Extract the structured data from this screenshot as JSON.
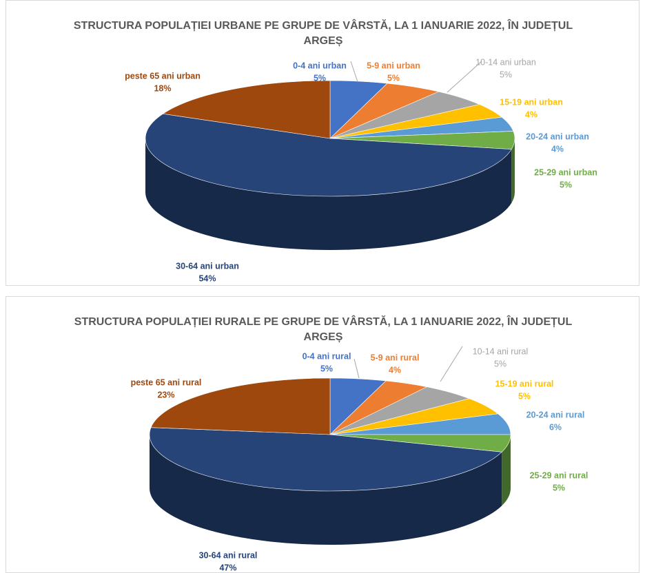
{
  "chart_data": [
    {
      "type": "pie",
      "title": "STRUCTURA POPULAȚIEI URBANE PE GRUPE DE VÂRSTĂ, LA 1 IANUARIE 2022, ÎN JUDEȚUL ARGEȘ",
      "categories": [
        "0-4 ani urban",
        "5-9 ani urban",
        "10-14 ani urban",
        "15-19 ani urban",
        "20-24 ani urban",
        "25-29 ani urban",
        "30-64 ani urban",
        "peste 65 ani urban"
      ],
      "values": [
        5,
        5,
        5,
        4,
        4,
        5,
        54,
        18
      ],
      "value_labels": [
        "5%",
        "5%",
        "5%",
        "4%",
        "4%",
        "5%",
        "54%",
        "18%"
      ],
      "colors": [
        "#4472c4",
        "#ed7d31",
        "#a5a5a5",
        "#ffc000",
        "#5b9bd5",
        "#70ad47",
        "#264478",
        "#9e480e"
      ]
    },
    {
      "type": "pie",
      "title": "STRUCTURA POPULAȚIEI RURALE PE GRUPE DE VÂRSTĂ, LA 1 IANUARIE 2022, ÎN JUDEȚUL ARGEȘ",
      "categories": [
        "0-4 ani rural",
        "5-9 ani rural",
        "10-14 ani rural",
        "15-19 ani rural",
        "20-24 ani rural",
        "25-29 ani rural",
        "30-64 ani rural",
        "peste 65 ani rural"
      ],
      "values": [
        5,
        4,
        5,
        5,
        6,
        5,
        47,
        23
      ],
      "value_labels": [
        "5%",
        "4%",
        "5%",
        "5%",
        "6%",
        "5%",
        "47%",
        "23%"
      ],
      "colors": [
        "#4472c4",
        "#ed7d31",
        "#a5a5a5",
        "#ffc000",
        "#5b9bd5",
        "#70ad47",
        "#264478",
        "#9e480e"
      ]
    }
  ]
}
